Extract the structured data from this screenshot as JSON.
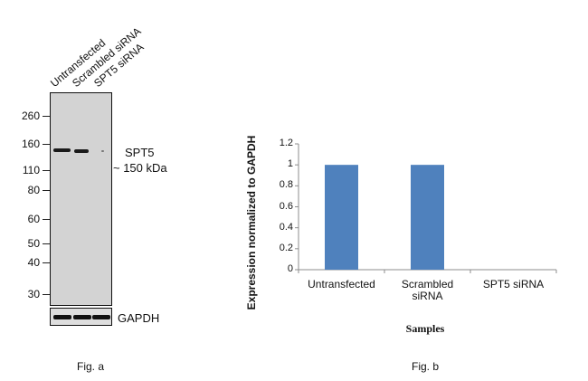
{
  "fig_a": {
    "lane_labels": [
      "Untransfected",
      "Scrambled siRNA",
      "SPT5 siRNA"
    ],
    "markers": [
      "260",
      "160",
      "110",
      "80",
      "60",
      "50",
      "40",
      "30"
    ],
    "target_label": "SPT5",
    "target_size": "~ 150 kDa",
    "loading_control": "GAPDH",
    "caption": "Fig. a"
  },
  "chart_data": {
    "type": "bar",
    "categories": [
      "Untransfected",
      "Scrambled\nsiRNA",
      "SPT5 siRNA"
    ],
    "values": [
      1,
      1,
      0
    ],
    "title": "",
    "xlabel": "Samples",
    "ylabel": "Expression normalized to GAPDH",
    "ylim": [
      0,
      1.2
    ],
    "yticks": [
      "0",
      "0.2",
      "0.4",
      "0.6",
      "0.8",
      "1",
      "1.2"
    ],
    "bar_color": "#4f81bd",
    "grid": false,
    "legend": "none"
  },
  "fig_b": {
    "caption": "Fig. b"
  }
}
